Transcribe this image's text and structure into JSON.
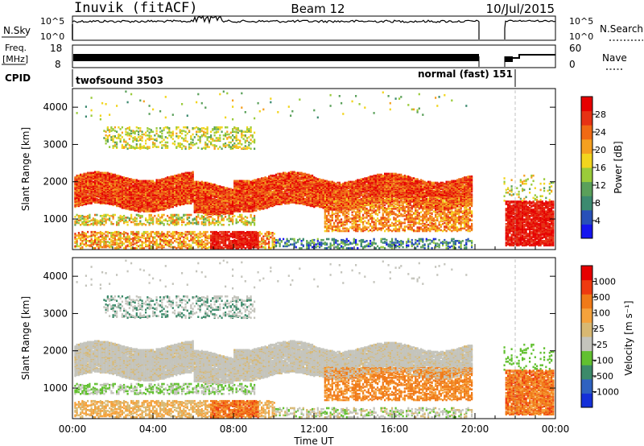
{
  "header": {
    "station": "Inuvik (fitACF)",
    "beam": "Beam 12",
    "date": "10/Jul/2015"
  },
  "status_panels": {
    "nsky_label": "N.Sky",
    "nsky_tick_top": "10^5",
    "nsky_tick_bottom": "10^0",
    "nsearch_label": "N.Search",
    "nsearch_tick_top": "10^5",
    "nsearch_tick_bottom": "10^0",
    "freq_label_line1": "Freq.",
    "freq_label_line2": "[MHz]",
    "freq_tick_top": "18",
    "freq_tick_bottom": "8",
    "nave_label": "Nave",
    "nave_tick_top": "60",
    "nave_tick_bottom": "0",
    "cpid_label": "CPID",
    "cpid_program_1": "twofsound 3503",
    "cpid_program_2": "normal (fast) 151"
  },
  "power_scale": {
    "title": "Power [dB]",
    "ticks": [
      "4",
      "8",
      "12",
      "16",
      "20",
      "24",
      "28"
    ],
    "colors": [
      "#1515ee",
      "#2850b8",
      "#3c8a70",
      "#5aa05a",
      "#9acb3a",
      "#f2d51e",
      "#f5a020",
      "#f06a14",
      "#e63214",
      "#e60000"
    ]
  },
  "velocity_scale": {
    "title": "Velocity [m s⁻¹]",
    "ticks": [
      "1000",
      "500",
      "100",
      "25",
      "-25",
      "-100",
      "-500",
      "-1000"
    ],
    "colors": [
      "#1530d8",
      "#2f62c0",
      "#3c8a6a",
      "#62c030",
      "#c4c4bc",
      "#d8b872",
      "#f5a23c",
      "#f07a18",
      "#ee3a10",
      "#e60000"
    ]
  },
  "chart_data": [
    {
      "type": "heatmap",
      "title": "",
      "ylabel": "Slant Range [km]",
      "xlabel": "",
      "x_ticks": [
        "00:00",
        "04:00",
        "08:00",
        "12:00",
        "16:00",
        "20:00",
        "00:00"
      ],
      "y_ticks": [
        "1000",
        "2000",
        "3000",
        "4000"
      ],
      "ylim": [
        180,
        4500
      ],
      "xlim_hours": [
        0,
        24
      ],
      "colorbar": "Power [dB]",
      "echo_bands": [
        {
          "region": "main F-region band",
          "x_hours": [
            0,
            19.8
          ],
          "range_km": [
            1200,
            2300
          ],
          "value_db": "20-28"
        },
        {
          "region": "near-range band",
          "x_hours": [
            0,
            10
          ],
          "range_km": [
            250,
            700
          ],
          "value_db": "16-28"
        },
        {
          "region": "upper band",
          "x_hours": [
            1.5,
            9
          ],
          "range_km": [
            2900,
            3500
          ],
          "value_db": "12-20"
        },
        {
          "region": "post-gap band",
          "x_hours": [
            21.5,
            24
          ],
          "range_km": [
            300,
            1500
          ],
          "value_db": "24-28"
        }
      ]
    },
    {
      "type": "heatmap",
      "title": "",
      "ylabel": "Slant Range [km]",
      "xlabel": "Time UT",
      "x_ticks": [
        "00:00",
        "04:00",
        "08:00",
        "12:00",
        "16:00",
        "20:00",
        "00:00"
      ],
      "y_ticks": [
        "1000",
        "2000",
        "3000",
        "4000"
      ],
      "ylim": [
        180,
        4500
      ],
      "xlim_hours": [
        0,
        24
      ],
      "colorbar": "Velocity [m s⁻¹]",
      "echo_bands": [
        {
          "region": "main band (ground scatter)",
          "x_hours": [
            0,
            19.8
          ],
          "range_km": [
            1200,
            2300
          ],
          "value_ms": "-25 to 25"
        },
        {
          "region": "afternoon band",
          "x_hours": [
            12.5,
            19.8
          ],
          "range_km": [
            700,
            1700
          ],
          "value_ms": "-500 to -100"
        },
        {
          "region": "post-gap band",
          "x_hours": [
            21.5,
            24
          ],
          "range_km": [
            300,
            1500
          ],
          "value_ms": "-500 to -100"
        }
      ]
    }
  ]
}
